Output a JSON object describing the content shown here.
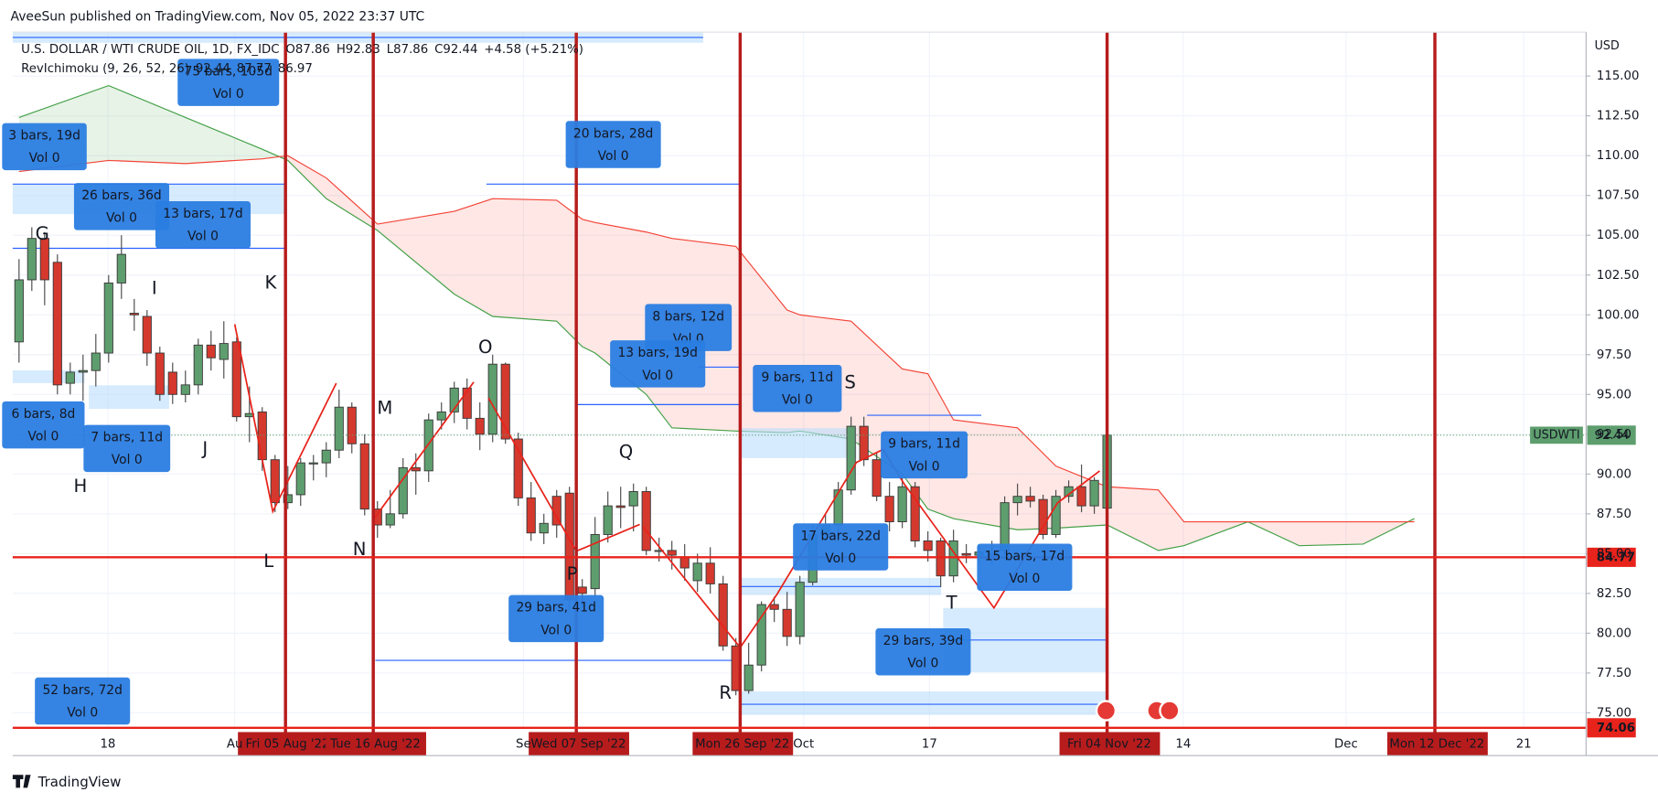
{
  "header": {
    "publisher": "AveeSun published on TradingView.com, Nov 05, 2022 23:37 UTC",
    "footer": "TradingView"
  },
  "chart_data": {
    "type": "candlestick",
    "title": "U.S. DOLLAR / WTI CRUDE OIL, 1D, FX_IDC",
    "ohlc_text": [
      "O87.86",
      "H92.83",
      "L87.86",
      "C92.44",
      "+4.58 (+5.21%)"
    ],
    "indicator": {
      "name": "RevIchimoku (9, 26, 52, 26)",
      "values": [
        "92.44",
        "87.77",
        "86.97"
      ],
      "colors": [
        "#43a047",
        "#43a047",
        "#f44336"
      ]
    },
    "currency": "USD",
    "up_color": "#5e9e6e",
    "down_color": "#d5392e",
    "open": [
      98.3,
      102.2,
      104.8,
      103.3,
      95.7,
      96.4,
      96.5,
      97.6,
      102,
      100.1,
      99.9,
      97.6,
      96.4,
      95,
      95.6,
      98.1,
      97.2,
      98.3,
      93.6,
      93.9,
      90.9,
      88.2,
      88.7,
      90.7,
      90.7,
      91.5,
      94.2,
      91.9,
      87.8,
      86.8,
      87.5,
      90.4,
      90.2,
      93.4,
      93.9,
      95.4,
      93.5,
      92.5,
      96.9,
      92.2,
      88.5,
      86.3,
      88.6,
      88.8,
      82.9,
      82.8,
      86.2,
      88,
      88,
      88.9,
      85.2,
      85.2,
      84.8,
      83.3,
      84.4,
      83.1,
      79.2,
      76.4,
      78,
      81.8,
      81.5,
      79.8,
      83.2,
      86.2,
      86.8,
      89,
      93,
      90.9,
      88.6,
      87,
      89.2,
      85.8,
      85.8,
      83.6,
      85,
      84.9,
      85,
      85.2,
      88.2,
      88.6,
      88.4,
      86.2,
      88.6,
      89.2,
      88,
      87.86
    ],
    "high": [
      103.5,
      105.5,
      105.2,
      103.8,
      97,
      97.5,
      98.8,
      102.5,
      105,
      101,
      100.3,
      98,
      97,
      96.5,
      98.5,
      99,
      99.6,
      98.6,
      95.5,
      94.2,
      91.2,
      90.5,
      91,
      91.2,
      92,
      95.3,
      94.5,
      92.5,
      88.3,
      89,
      91,
      91.3,
      93.8,
      94.5,
      95.8,
      96,
      94.5,
      97.5,
      97,
      92.6,
      89.5,
      87.5,
      89,
      89.2,
      83.4,
      87.3,
      88.9,
      89.2,
      89.4,
      89.2,
      86,
      85.8,
      85.6,
      85,
      85.4,
      83.6,
      79.7,
      79.4,
      82,
      82.3,
      82.6,
      83.6,
      86.8,
      87.5,
      89.5,
      93.6,
      93.6,
      91.4,
      89.5,
      89.8,
      89.5,
      86.4,
      86,
      86.5,
      85.6,
      85.5,
      85.8,
      88.6,
      89.4,
      89.2,
      88.7,
      89,
      89.6,
      90.6,
      89.8,
      92.83
    ],
    "low": [
      97,
      101.5,
      100.6,
      95,
      95,
      94.6,
      95.5,
      97,
      101,
      99,
      96.8,
      94.6,
      94.4,
      94.5,
      95,
      96.5,
      96,
      93.3,
      92,
      90.2,
      87.6,
      87.8,
      88,
      89.6,
      89.8,
      91,
      91.3,
      87.4,
      86,
      86.6,
      87.2,
      88.7,
      89.5,
      92.8,
      93.2,
      92.8,
      91.5,
      92,
      91.9,
      88,
      85.8,
      85.6,
      86,
      81.5,
      81.6,
      82.3,
      85.7,
      86.6,
      86.4,
      84.9,
      84.5,
      84,
      83.3,
      82.6,
      82.5,
      78.9,
      76.1,
      76.2,
      77.6,
      80.7,
      79.2,
      79.3,
      83,
      85.8,
      86.3,
      88.7,
      90.5,
      88.3,
      86.4,
      86.6,
      85.4,
      84.5,
      82.9,
      83.2,
      84.4,
      84.4,
      84.3,
      84.9,
      87.4,
      87.9,
      85.9,
      86,
      88.2,
      87.6,
      87.5,
      87.86
    ],
    "close": [
      102.2,
      104.8,
      102.2,
      95.6,
      96.4,
      96.5,
      97.6,
      102,
      103.8,
      100,
      97.6,
      95,
      95,
      95.6,
      98.1,
      97.3,
      98.2,
      93.6,
      93.8,
      90.9,
      88.2,
      88.7,
      90.7,
      90.7,
      91.5,
      94.2,
      91.9,
      87.8,
      86.8,
      87.5,
      90.4,
      90.2,
      93.4,
      93.9,
      95.4,
      93.5,
      92.5,
      96.9,
      92.2,
      88.5,
      86.3,
      86.9,
      86.8,
      82.1,
      82.5,
      86.2,
      88,
      87.9,
      88.9,
      85.2,
      85.2,
      84.9,
      84.1,
      84.4,
      83.1,
      79.2,
      76.4,
      78,
      81.8,
      81.5,
      79.8,
      83.2,
      86.2,
      86.8,
      89,
      93,
      90.9,
      88.6,
      87,
      89.2,
      85.8,
      85.2,
      83.6,
      85.8,
      84.9,
      85.1,
      84.8,
      88.2,
      88.6,
      88.3,
      86.2,
      88.6,
      89.2,
      88,
      89.6,
      92.44
    ],
    "cloud": {
      "x": [
        0,
        7,
        13,
        19,
        21,
        24,
        28,
        34,
        37,
        42,
        44,
        45,
        49,
        51,
        56,
        60,
        61,
        65,
        69,
        71,
        73,
        78,
        81,
        85,
        89,
        91,
        96,
        100,
        105,
        109
      ],
      "span_a": {
        "color": "#43a047",
        "values": [
          112.4,
          114.4,
          112.4,
          110.4,
          109.7,
          107.3,
          105.3,
          101.3,
          99.9,
          99.6,
          98,
          97.6,
          95,
          92.9,
          92.7,
          92.6,
          92.7,
          92.2,
          90,
          87.8,
          87.2,
          86.5,
          86.6,
          86.8,
          85.2,
          85.5,
          87,
          85.5,
          85.6,
          87.2
        ]
      },
      "span_b": {
        "color": "#f44336",
        "values": [
          109,
          109.7,
          109.5,
          109.8,
          110,
          108.6,
          105.7,
          106.5,
          107.3,
          107.2,
          106,
          105.8,
          105.2,
          104.8,
          104.3,
          100.3,
          100,
          99.6,
          96.6,
          96.3,
          93.4,
          92.9,
          90.5,
          89.2,
          89,
          87,
          87,
          87,
          87,
          87
        ]
      }
    },
    "ylim": [
      74.06,
      117.76
    ],
    "yticks": [
      {
        "value": 75,
        "label": "75.00"
      },
      {
        "value": 77.5,
        "label": "77.50"
      },
      {
        "value": 80,
        "label": "80.00"
      },
      {
        "value": 82.5,
        "label": "82.50"
      },
      {
        "value": 85,
        "label": "85.00"
      },
      {
        "value": 87.5,
        "label": "87.50"
      },
      {
        "value": 90,
        "label": "90.00"
      },
      {
        "value": 92.5,
        "label": "92.50"
      },
      {
        "value": 95,
        "label": "95.00"
      },
      {
        "value": 97.5,
        "label": "97.50"
      },
      {
        "value": 100,
        "label": "100.00"
      },
      {
        "value": 102.5,
        "label": "102.50"
      },
      {
        "value": 105,
        "label": "105.00"
      },
      {
        "value": 107.5,
        "label": "107.50"
      },
      {
        "value": 110,
        "label": "110.00"
      },
      {
        "value": 112.5,
        "label": "112.50"
      },
      {
        "value": 115,
        "label": "115.00"
      }
    ],
    "xtick_labels": [
      "18",
      "Au",
      "Se",
      "Oct",
      "17",
      "14",
      "Dec",
      "21"
    ],
    "date_markers": [
      "Fri 05 Aug '22",
      "Tue 16 Aug '22",
      "Wed 07 Sep '22",
      "Mon 26 Sep '22",
      "Fri 04 Nov '22",
      "Mon 12 Dec '22"
    ],
    "last_price": {
      "symbol": "USDWTI",
      "value": 92.44,
      "color": "#5e9e6e"
    },
    "price_lines": [
      {
        "value": 84.77,
        "color": "#e8231b"
      },
      {
        "value": 74.06,
        "color": "#e8231b"
      }
    ],
    "grid": true,
    "measurements": [
      {
        "range": "75 bars, 105d",
        "volume": "Vol 0"
      },
      {
        "range": "3 bars, 19d",
        "volume": "Vol 0"
      },
      {
        "range": "26 bars, 36d",
        "volume": "Vol 0"
      },
      {
        "range": "13 bars, 17d",
        "volume": "Vol 0"
      },
      {
        "range": "20 bars, 28d",
        "volume": "Vol 0"
      },
      {
        "range": "8 bars, 12d",
        "volume": "Vol 0"
      },
      {
        "range": "13 bars, 19d",
        "volume": "Vol 0"
      },
      {
        "range": "9 bars, 11d",
        "volume": "Vol 0"
      },
      {
        "range": "6 bars, 8d",
        "volume": "Vol 0"
      },
      {
        "range": "7 bars, 11d",
        "volume": "Vol 0"
      },
      {
        "range": "9 bars, 11d",
        "volume": "Vol 0"
      },
      {
        "range": "17 bars, 22d",
        "volume": "Vol 0"
      },
      {
        "range": "15 bars, 17d",
        "volume": "Vol 0"
      },
      {
        "range": "29 bars, 41d",
        "volume": "Vol 0"
      },
      {
        "range": "29 bars, 39d",
        "volume": "Vol 0"
      },
      {
        "range": "52 bars, 72d",
        "volume": "Vol 0"
      }
    ],
    "wave_labels": [
      "G",
      "H",
      "I",
      "J",
      "K",
      "L",
      "M",
      "N",
      "O",
      "P",
      "Q",
      "R",
      "S",
      "T"
    ]
  }
}
